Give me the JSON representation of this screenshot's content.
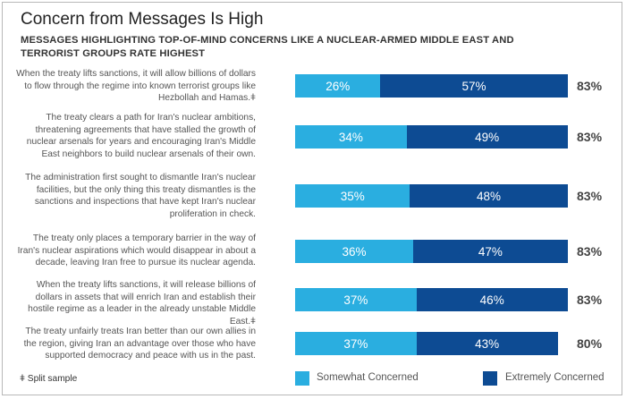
{
  "title": "Concern from Messages Is High",
  "subtitle": "MESSAGES HIGHLIGHTING TOP-OF-MIND CONCERNS LIKE A NUCLEAR-ARMED MIDDLE EAST AND TERRORIST GROUPS RATE HIGHEST",
  "footnote": "ǂ Split sample",
  "colors": {
    "somewhat": "#2aaee0",
    "extremely": "#0d4b93"
  },
  "chart_data": {
    "type": "bar",
    "orientation": "horizontal",
    "stacked": true,
    "title": "Concern from Messages Is High",
    "subtitle": "MESSAGES HIGHLIGHTING TOP-OF-MIND CONCERNS LIKE A NUCLEAR-ARMED MIDDLE EAST AND TERRORIST GROUPS RATE HIGHEST",
    "categories": [
      "When the treaty lifts sanctions, it will allow billions of dollars to flow through the regime into known terrorist groups like Hezbollah and Hamas.ǂ",
      "The treaty clears a path for Iran's nuclear ambitions, threatening agreements that have stalled the growth of nuclear arsenals for years and encouraging Iran's Middle East neighbors to build nuclear arsenals of their own.",
      "The administration first sought to dismantle Iran's nuclear facilities, but the only thing this treaty dismantles is the sanctions and inspections that have kept Iran's nuclear proliferation in check.",
      "The treaty only places a temporary barrier in the way of Iran's nuclear aspirations which would disappear in about a decade, leaving Iran free to pursue its nuclear agenda.",
      "When the treaty lifts sanctions, it will release billions of dollars in assets that will enrich Iran and establish their hostile regime as a leader in the already unstable Middle East.ǂ",
      "The treaty unfairly treats Iran better than our own allies in the region, giving Iran an advantage over those who have supported democracy and peace with us in the past."
    ],
    "series": [
      {
        "name": "Somewhat Concerned",
        "values": [
          26,
          34,
          35,
          36,
          37,
          37
        ],
        "labels": [
          "26%",
          "34%",
          "35%",
          "36%",
          "37%",
          "37%"
        ]
      },
      {
        "name": "Extremely Concerned",
        "values": [
          57,
          49,
          48,
          47,
          46,
          43
        ],
        "labels": [
          "57%",
          "49%",
          "48%",
          "47%",
          "46%",
          "43%"
        ]
      }
    ],
    "totals": [
      83,
      83,
      83,
      83,
      83,
      80
    ],
    "total_labels": [
      "83%",
      "83%",
      "83%",
      "83%",
      "83%",
      "80%"
    ],
    "unit": "%",
    "legend": {
      "position": "bottom",
      "entries": [
        "Somewhat Concerned",
        "Extremely Concerned"
      ]
    }
  }
}
